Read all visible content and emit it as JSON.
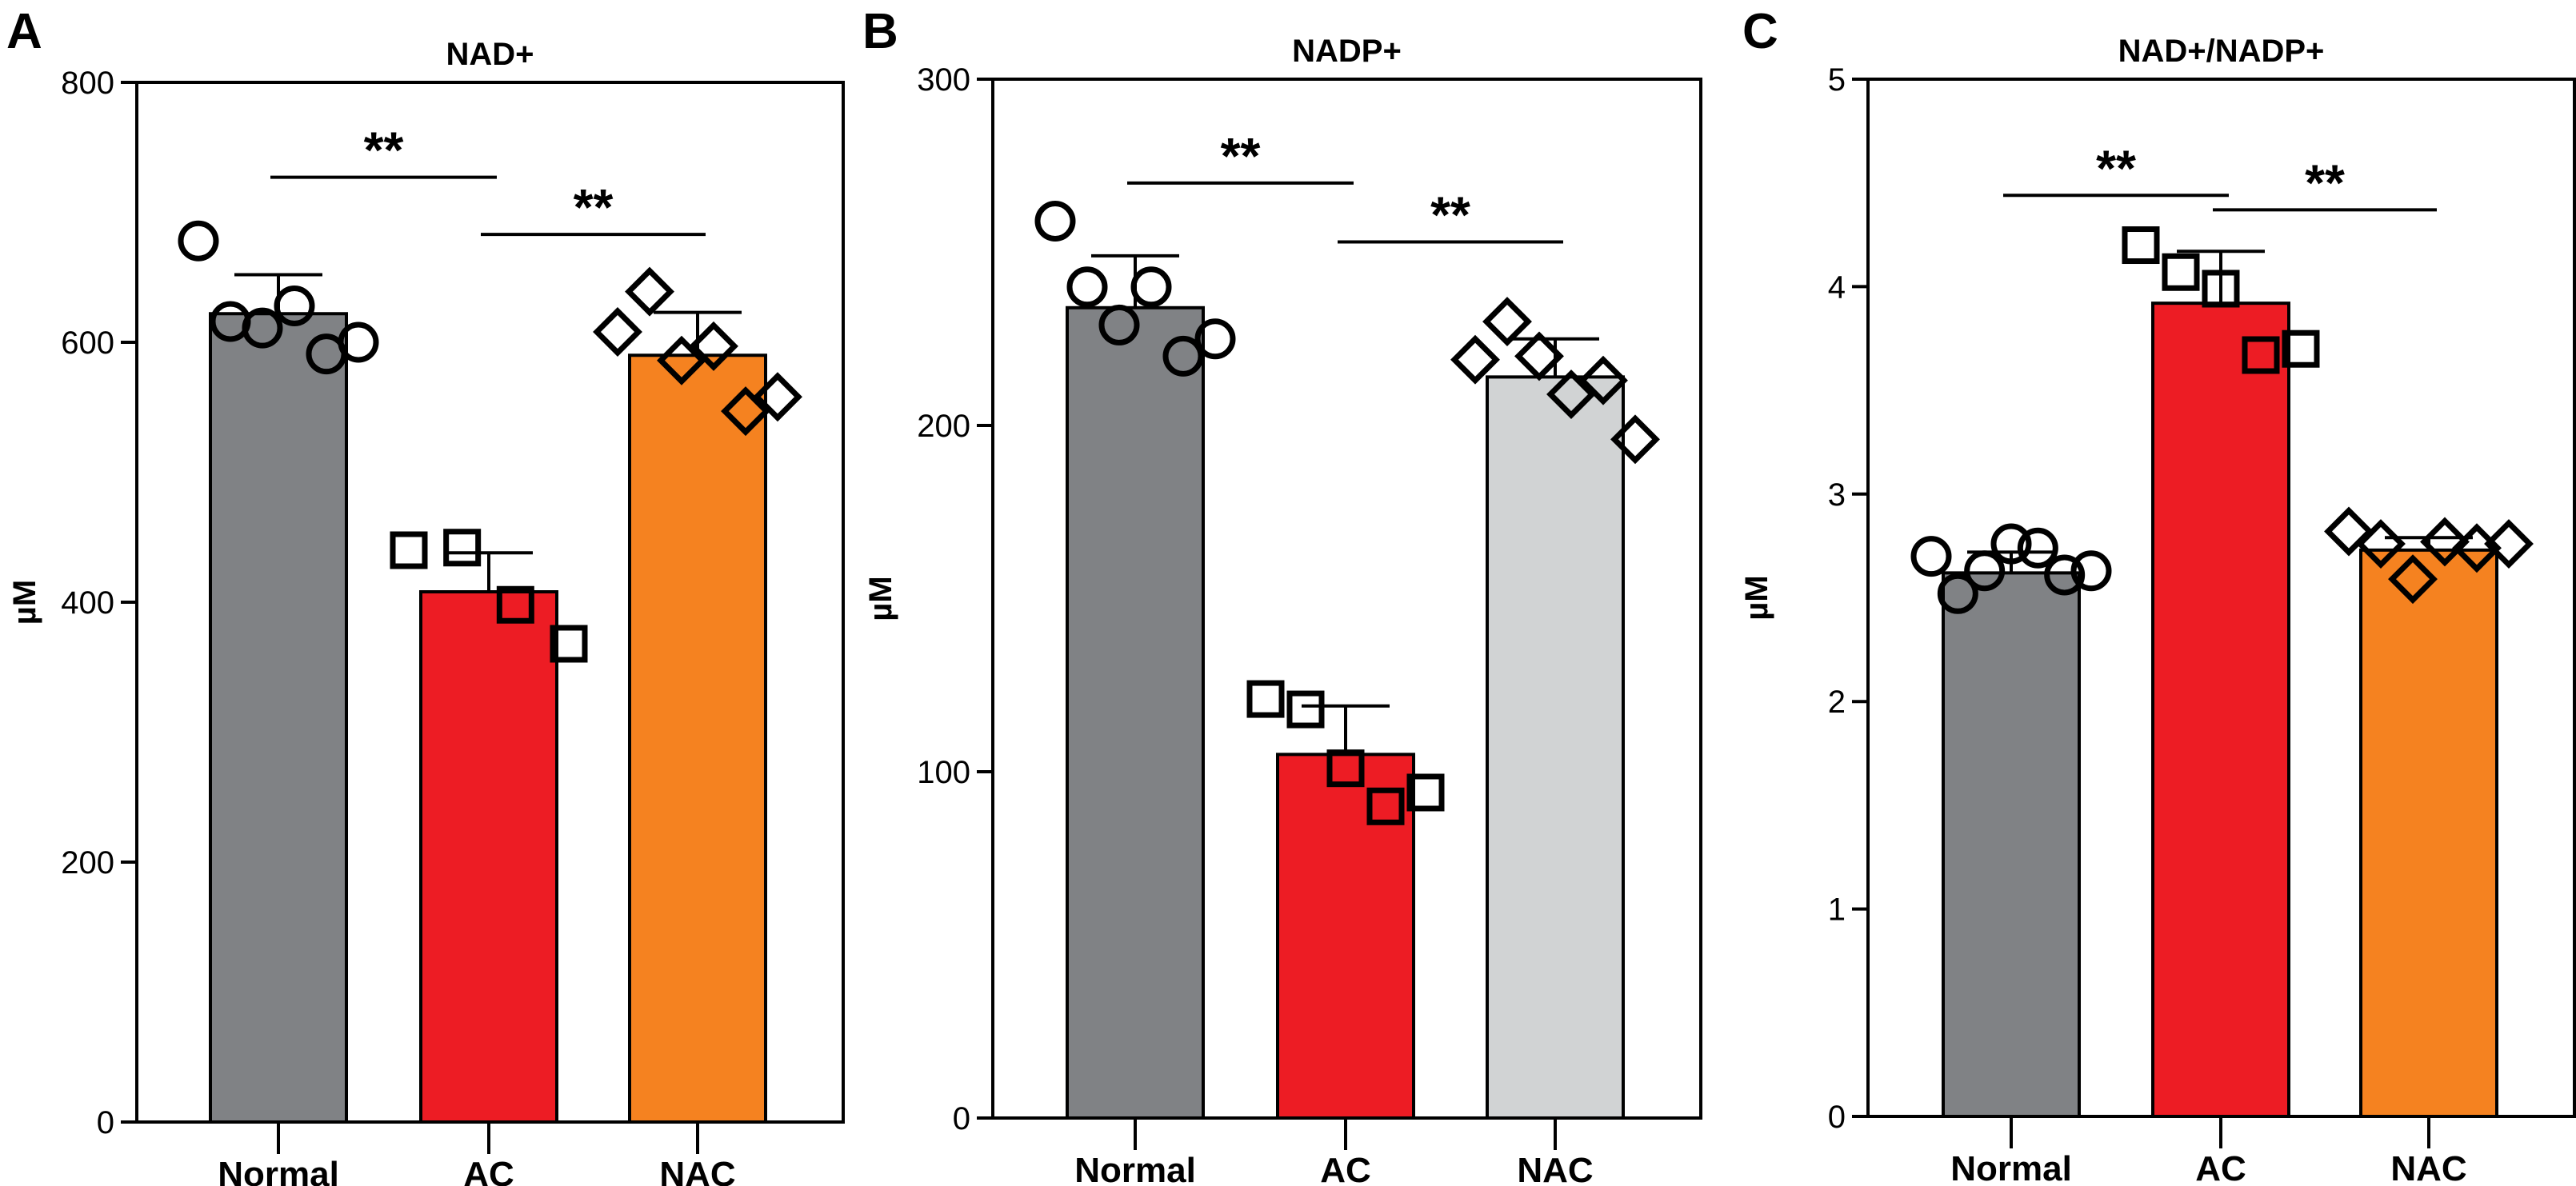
{
  "chart_data": [
    {
      "panel": "A",
      "type": "bar",
      "title": "NAD+",
      "xlabel": "",
      "ylabel": "µM",
      "ylim": [
        0,
        800
      ],
      "yticks": [
        0,
        200,
        400,
        600,
        800
      ],
      "categories": [
        "Normal",
        "AC",
        "NAC"
      ],
      "values": [
        622,
        408,
        590
      ],
      "error_sd": [
        30,
        30,
        33
      ],
      "bar_colors": [
        "#808285",
        "#ed1c24",
        "#f58220"
      ],
      "markers": [
        "circle",
        "square",
        "diamond"
      ],
      "points": [
        [
          678,
          616,
          611,
          628,
          591,
          600
        ],
        [
          440,
          442,
          398,
          368
        ],
        [
          608,
          639,
          586,
          597,
          547,
          558
        ]
      ],
      "significance": [
        {
          "from": "Normal",
          "to": "AC",
          "label": "**",
          "y": 727
        },
        {
          "from": "AC",
          "to": "NAC",
          "label": "**",
          "y": 683
        }
      ],
      "grid": false,
      "legend": "none"
    },
    {
      "panel": "B",
      "type": "bar",
      "title": "NADP+",
      "xlabel": "",
      "ylabel": "µM",
      "ylim": [
        0,
        300
      ],
      "yticks": [
        0,
        100,
        200,
        300
      ],
      "categories": [
        "Normal",
        "AC",
        "NAC"
      ],
      "values": [
        234,
        105,
        214
      ],
      "error_sd": [
        15,
        14,
        11
      ],
      "bar_colors": [
        "#808285",
        "#ed1c24",
        "#d1d3d4"
      ],
      "markers": [
        "circle",
        "square",
        "diamond"
      ],
      "points": [
        [
          259,
          240,
          229,
          240,
          220,
          225
        ],
        [
          121,
          118,
          101,
          90,
          94
        ],
        [
          219,
          230,
          220,
          209,
          213,
          196
        ]
      ],
      "significance": [
        {
          "from": "Normal",
          "to": "AC",
          "label": "**",
          "y": 270
        },
        {
          "from": "AC",
          "to": "NAC",
          "label": "**",
          "y": 253
        }
      ],
      "grid": false,
      "legend": "none"
    },
    {
      "panel": "C",
      "type": "bar",
      "title": "NAD+/NADP+",
      "xlabel": "",
      "ylabel": "µM",
      "ylim": [
        0,
        5
      ],
      "yticks": [
        0,
        1,
        2,
        3,
        4,
        5
      ],
      "categories": [
        "Normal",
        "AC",
        "NAC"
      ],
      "values": [
        2.62,
        3.92,
        2.73
      ],
      "error_sd": [
        0.1,
        0.25,
        0.06
      ],
      "bar_colors": [
        "#808285",
        "#ed1c24",
        "#f58220"
      ],
      "markers": [
        "circle",
        "square",
        "diamond"
      ],
      "points": [
        [
          2.7,
          2.52,
          2.63,
          2.76,
          2.74,
          2.61,
          2.63
        ],
        [
          4.2,
          4.07,
          3.99,
          3.67,
          3.7
        ],
        [
          2.82,
          2.76,
          2.59,
          2.77,
          2.74,
          2.76
        ]
      ],
      "significance": [
        {
          "from": "Normal",
          "to": "AC",
          "label": "**",
          "y": 4.44
        },
        {
          "from": "AC",
          "to": "NAC",
          "label": "**",
          "y": 4.37
        }
      ],
      "grid": false,
      "legend": "none"
    }
  ]
}
